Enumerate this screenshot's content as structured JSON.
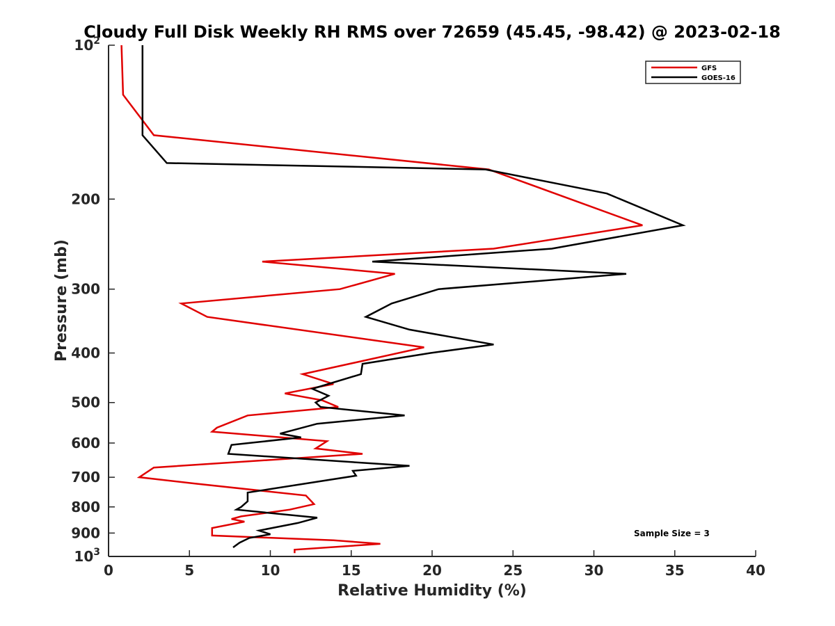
{
  "chart_data": {
    "type": "line",
    "title": "Cloudy Full Disk Weekly RH RMS over 72659 (45.45, -98.42) @ 2023-02-18",
    "xlabel": "Relative Humidity (%)",
    "ylabel": "Pressure (mb)",
    "xlim": [
      0,
      40
    ],
    "ylim": [
      100,
      1000
    ],
    "y_scale": "log",
    "y_reversed": true,
    "x_ticks": [
      "0",
      "5",
      "10",
      "15",
      "20",
      "25",
      "30",
      "35",
      "40"
    ],
    "y_ticks": [
      {
        "value": 100,
        "label": "10",
        "sup": "2"
      },
      {
        "value": 200,
        "label": "200",
        "sup": ""
      },
      {
        "value": 300,
        "label": "300",
        "sup": ""
      },
      {
        "value": 400,
        "label": "400",
        "sup": ""
      },
      {
        "value": 500,
        "label": "500",
        "sup": ""
      },
      {
        "value": 600,
        "label": "600",
        "sup": ""
      },
      {
        "value": 700,
        "label": "700",
        "sup": ""
      },
      {
        "value": 800,
        "label": "800",
        "sup": ""
      },
      {
        "value": 900,
        "label": "900",
        "sup": ""
      },
      {
        "value": 1000,
        "label": "10",
        "sup": "3"
      }
    ],
    "legend_position": "top-right",
    "annotation": "Sample Size = 3",
    "grid": false,
    "series": [
      {
        "name": "GFS",
        "color": "#e00000",
        "points": [
          [
            0.8,
            100
          ],
          [
            0.9,
            125
          ],
          [
            2.8,
            150
          ],
          [
            23.5,
            175
          ],
          [
            33.0,
            225
          ],
          [
            23.8,
            250
          ],
          [
            9.5,
            265
          ],
          [
            17.7,
            280
          ],
          [
            14.3,
            300
          ],
          [
            4.5,
            320
          ],
          [
            6.1,
            340
          ],
          [
            19.5,
            390
          ],
          [
            12.0,
            440
          ],
          [
            13.9,
            460
          ],
          [
            10.9,
            480
          ],
          [
            13.2,
            495
          ],
          [
            14.2,
            510
          ],
          [
            12.8,
            515
          ],
          [
            8.6,
            530
          ],
          [
            6.7,
            560
          ],
          [
            6.4,
            570
          ],
          [
            13.5,
            595
          ],
          [
            12.8,
            615
          ],
          [
            15.7,
            630
          ],
          [
            2.8,
            670
          ],
          [
            1.9,
            700
          ],
          [
            5.3,
            720
          ],
          [
            12.2,
            760
          ],
          [
            12.7,
            790
          ],
          [
            11.2,
            810
          ],
          [
            8.2,
            835
          ],
          [
            7.6,
            845
          ],
          [
            8.4,
            855
          ],
          [
            6.4,
            880
          ],
          [
            6.4,
            910
          ],
          [
            13.9,
            930
          ],
          [
            16.8,
            945
          ],
          [
            11.5,
            970
          ],
          [
            11.5,
            985
          ]
        ]
      },
      {
        "name": "GOES-16",
        "color": "#000000",
        "points": [
          [
            2.1,
            100
          ],
          [
            2.1,
            125
          ],
          [
            2.1,
            150
          ],
          [
            3.6,
            170
          ],
          [
            23.3,
            175
          ],
          [
            30.8,
            195
          ],
          [
            35.5,
            225
          ],
          [
            27.4,
            250
          ],
          [
            16.3,
            265
          ],
          [
            32.0,
            280
          ],
          [
            20.4,
            300
          ],
          [
            17.5,
            320
          ],
          [
            15.9,
            340
          ],
          [
            18.6,
            360
          ],
          [
            23.8,
            385
          ],
          [
            19.9,
            400
          ],
          [
            15.7,
            420
          ],
          [
            15.6,
            440
          ],
          [
            12.6,
            470
          ],
          [
            13.6,
            485
          ],
          [
            12.8,
            500
          ],
          [
            13.1,
            510
          ],
          [
            18.3,
            530
          ],
          [
            12.9,
            550
          ],
          [
            10.6,
            575
          ],
          [
            11.9,
            585
          ],
          [
            7.6,
            605
          ],
          [
            7.4,
            630
          ],
          [
            18.6,
            665
          ],
          [
            15.1,
            680
          ],
          [
            15.3,
            695
          ],
          [
            8.6,
            750
          ],
          [
            8.6,
            780
          ],
          [
            8.2,
            800
          ],
          [
            7.9,
            810
          ],
          [
            12.9,
            840
          ],
          [
            11.7,
            860
          ],
          [
            9.3,
            890
          ],
          [
            10.0,
            905
          ],
          [
            8.7,
            920
          ],
          [
            8.1,
            940
          ],
          [
            7.7,
            960
          ]
        ]
      }
    ]
  }
}
